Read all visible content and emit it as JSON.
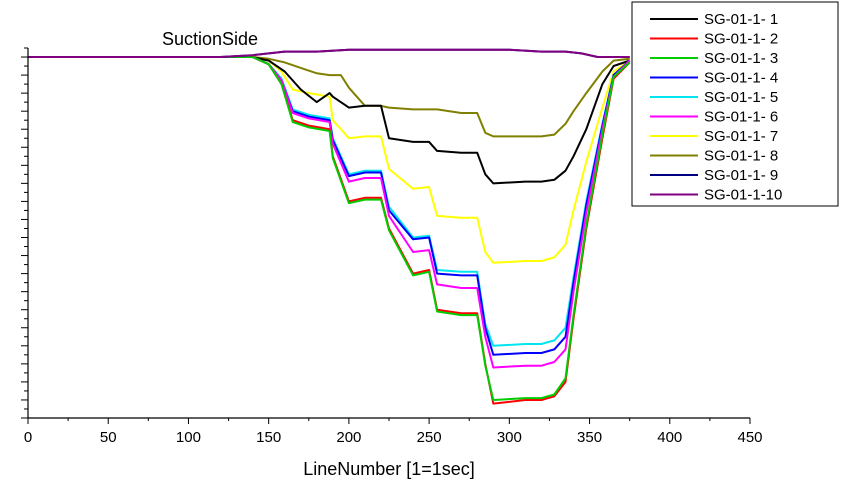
{
  "chart_data": {
    "type": "line",
    "title": "SuctionSide",
    "xlabel": "LineNumber [1=1sec]",
    "ylabel": "",
    "xlim": [
      0,
      450
    ],
    "ylim": [
      -200,
      5
    ],
    "x_ticks": [
      "0",
      "50",
      "100",
      "150",
      "200",
      "250",
      "300",
      "350",
      "400",
      "450"
    ],
    "grid": false,
    "legend_position": "top-right",
    "series": [
      {
        "name": "SG-01-1- 1",
        "color": "#000000",
        "points": [
          [
            0,
            0
          ],
          [
            140,
            0
          ],
          [
            150,
            -2
          ],
          [
            160,
            -8
          ],
          [
            170,
            -18
          ],
          [
            180,
            -25
          ],
          [
            188,
            -20
          ],
          [
            190,
            -22
          ],
          [
            200,
            -28
          ],
          [
            210,
            -27
          ],
          [
            220,
            -27
          ],
          [
            225,
            -45
          ],
          [
            240,
            -47
          ],
          [
            250,
            -47
          ],
          [
            255,
            -52
          ],
          [
            270,
            -53
          ],
          [
            280,
            -53
          ],
          [
            285,
            -65
          ],
          [
            290,
            -70
          ],
          [
            310,
            -69
          ],
          [
            320,
            -69
          ],
          [
            328,
            -68
          ],
          [
            335,
            -63
          ],
          [
            340,
            -55
          ],
          [
            348,
            -40
          ],
          [
            358,
            -15
          ],
          [
            365,
            -5
          ],
          [
            375,
            -2
          ]
        ]
      },
      {
        "name": "SG-01-1- 2",
        "color": "#ff0000",
        "points": [
          [
            0,
            0
          ],
          [
            140,
            0
          ],
          [
            150,
            -4
          ],
          [
            158,
            -15
          ],
          [
            165,
            -35
          ],
          [
            175,
            -38
          ],
          [
            188,
            -40
          ],
          [
            190,
            -55
          ],
          [
            200,
            -80
          ],
          [
            210,
            -78
          ],
          [
            220,
            -78
          ],
          [
            225,
            -95
          ],
          [
            240,
            -120
          ],
          [
            250,
            -118
          ],
          [
            255,
            -140
          ],
          [
            270,
            -142
          ],
          [
            280,
            -142
          ],
          [
            285,
            -170
          ],
          [
            290,
            -192
          ],
          [
            310,
            -190
          ],
          [
            320,
            -190
          ],
          [
            328,
            -188
          ],
          [
            335,
            -180
          ],
          [
            340,
            -145
          ],
          [
            348,
            -95
          ],
          [
            358,
            -45
          ],
          [
            365,
            -12
          ],
          [
            375,
            -3
          ]
        ]
      },
      {
        "name": "SG-01-1- 3",
        "color": "#00cc00",
        "points": [
          [
            0,
            0
          ],
          [
            140,
            0
          ],
          [
            150,
            -4
          ],
          [
            158,
            -15
          ],
          [
            165,
            -36
          ],
          [
            175,
            -39
          ],
          [
            188,
            -41
          ],
          [
            190,
            -56
          ],
          [
            200,
            -81
          ],
          [
            210,
            -79
          ],
          [
            220,
            -79
          ],
          [
            225,
            -96
          ],
          [
            240,
            -121
          ],
          [
            250,
            -119
          ],
          [
            255,
            -141
          ],
          [
            270,
            -143
          ],
          [
            280,
            -143
          ],
          [
            285,
            -171
          ],
          [
            290,
            -190
          ],
          [
            310,
            -189
          ],
          [
            320,
            -189
          ],
          [
            328,
            -187
          ],
          [
            335,
            -178
          ],
          [
            340,
            -143
          ],
          [
            348,
            -93
          ],
          [
            358,
            -43
          ],
          [
            365,
            -11
          ],
          [
            375,
            -3
          ]
        ]
      },
      {
        "name": "SG-01-1- 4",
        "color": "#0000ff",
        "points": [
          [
            0,
            0
          ],
          [
            140,
            0
          ],
          [
            150,
            -4
          ],
          [
            158,
            -13
          ],
          [
            165,
            -30
          ],
          [
            175,
            -33
          ],
          [
            188,
            -35
          ],
          [
            190,
            -46
          ],
          [
            200,
            -66
          ],
          [
            210,
            -64
          ],
          [
            220,
            -64
          ],
          [
            225,
            -85
          ],
          [
            240,
            -101
          ],
          [
            250,
            -100
          ],
          [
            255,
            -120
          ],
          [
            270,
            -121
          ],
          [
            280,
            -121
          ],
          [
            285,
            -150
          ],
          [
            290,
            -165
          ],
          [
            310,
            -164
          ],
          [
            320,
            -164
          ],
          [
            328,
            -162
          ],
          [
            335,
            -155
          ],
          [
            340,
            -125
          ],
          [
            348,
            -82
          ],
          [
            358,
            -38
          ],
          [
            365,
            -10
          ],
          [
            375,
            -2
          ]
        ]
      },
      {
        "name": "SG-01-1- 5",
        "color": "#00e5ee",
        "points": [
          [
            0,
            0
          ],
          [
            140,
            0
          ],
          [
            150,
            -4
          ],
          [
            158,
            -12
          ],
          [
            165,
            -29
          ],
          [
            175,
            -32
          ],
          [
            188,
            -34
          ],
          [
            190,
            -45
          ],
          [
            200,
            -65
          ],
          [
            210,
            -63
          ],
          [
            220,
            -63
          ],
          [
            225,
            -83
          ],
          [
            240,
            -100
          ],
          [
            250,
            -99
          ],
          [
            255,
            -118
          ],
          [
            270,
            -119
          ],
          [
            280,
            -119
          ],
          [
            285,
            -148
          ],
          [
            290,
            -160
          ],
          [
            310,
            -159
          ],
          [
            320,
            -159
          ],
          [
            328,
            -157
          ],
          [
            335,
            -150
          ],
          [
            340,
            -122
          ],
          [
            348,
            -80
          ],
          [
            358,
            -37
          ],
          [
            365,
            -10
          ],
          [
            375,
            -2
          ]
        ]
      },
      {
        "name": "SG-01-1- 6",
        "color": "#ff00ff",
        "points": [
          [
            0,
            0
          ],
          [
            140,
            0
          ],
          [
            150,
            -4
          ],
          [
            158,
            -13
          ],
          [
            165,
            -31
          ],
          [
            175,
            -34
          ],
          [
            188,
            -36
          ],
          [
            190,
            -48
          ],
          [
            200,
            -69
          ],
          [
            210,
            -67
          ],
          [
            220,
            -67
          ],
          [
            225,
            -88
          ],
          [
            240,
            -108
          ],
          [
            250,
            -107
          ],
          [
            255,
            -126
          ],
          [
            270,
            -128
          ],
          [
            280,
            -128
          ],
          [
            285,
            -155
          ],
          [
            290,
            -172
          ],
          [
            310,
            -171
          ],
          [
            320,
            -171
          ],
          [
            328,
            -169
          ],
          [
            335,
            -162
          ],
          [
            340,
            -130
          ],
          [
            348,
            -86
          ],
          [
            358,
            -40
          ],
          [
            365,
            -11
          ],
          [
            375,
            -2
          ]
        ]
      },
      {
        "name": "SG-01-1- 7",
        "color": "#ffff00",
        "points": [
          [
            0,
            0
          ],
          [
            140,
            0
          ],
          [
            150,
            -2
          ],
          [
            158,
            -8
          ],
          [
            165,
            -18
          ],
          [
            175,
            -20
          ],
          [
            188,
            -22
          ],
          [
            190,
            -35
          ],
          [
            200,
            -45
          ],
          [
            210,
            -44
          ],
          [
            220,
            -44
          ],
          [
            225,
            -62
          ],
          [
            240,
            -73
          ],
          [
            250,
            -72
          ],
          [
            255,
            -88
          ],
          [
            270,
            -89
          ],
          [
            280,
            -89
          ],
          [
            285,
            -108
          ],
          [
            290,
            -114
          ],
          [
            310,
            -113
          ],
          [
            320,
            -113
          ],
          [
            328,
            -111
          ],
          [
            335,
            -104
          ],
          [
            340,
            -85
          ],
          [
            348,
            -58
          ],
          [
            358,
            -28
          ],
          [
            365,
            -8
          ],
          [
            375,
            -2
          ]
        ]
      },
      {
        "name": "SG-01-1- 8",
        "color": "#808000",
        "points": [
          [
            0,
            0
          ],
          [
            140,
            0
          ],
          [
            150,
            -1
          ],
          [
            160,
            -3
          ],
          [
            170,
            -6
          ],
          [
            180,
            -9
          ],
          [
            188,
            -10
          ],
          [
            195,
            -10
          ],
          [
            200,
            -17
          ],
          [
            210,
            -27
          ],
          [
            220,
            -27
          ],
          [
            225,
            -28
          ],
          [
            240,
            -29
          ],
          [
            250,
            -29
          ],
          [
            255,
            -29
          ],
          [
            270,
            -31
          ],
          [
            280,
            -31
          ],
          [
            285,
            -42
          ],
          [
            290,
            -44
          ],
          [
            310,
            -44
          ],
          [
            320,
            -44
          ],
          [
            328,
            -43
          ],
          [
            335,
            -37
          ],
          [
            340,
            -30
          ],
          [
            348,
            -20
          ],
          [
            358,
            -8
          ],
          [
            365,
            -2
          ],
          [
            375,
            -1
          ]
        ]
      },
      {
        "name": "SG-01-1- 9",
        "color": "#000080",
        "points": [
          [
            0,
            0
          ],
          [
            120,
            0
          ],
          [
            140,
            1
          ],
          [
            160,
            3
          ],
          [
            180,
            3
          ],
          [
            200,
            4
          ],
          [
            220,
            4
          ],
          [
            240,
            4
          ],
          [
            260,
            4
          ],
          [
            280,
            4
          ],
          [
            300,
            4
          ],
          [
            320,
            3
          ],
          [
            335,
            3
          ],
          [
            345,
            2
          ],
          [
            355,
            0
          ],
          [
            375,
            0
          ]
        ]
      },
      {
        "name": "SG-01-1-10",
        "color": "#800080",
        "points": [
          [
            0,
            0
          ],
          [
            120,
            0
          ],
          [
            140,
            1
          ],
          [
            160,
            3
          ],
          [
            180,
            3
          ],
          [
            200,
            4
          ],
          [
            220,
            4
          ],
          [
            240,
            4
          ],
          [
            260,
            4
          ],
          [
            280,
            4
          ],
          [
            300,
            4
          ],
          [
            320,
            3
          ],
          [
            335,
            3
          ],
          [
            345,
            2
          ],
          [
            355,
            0
          ],
          [
            375,
            0
          ]
        ]
      }
    ]
  }
}
